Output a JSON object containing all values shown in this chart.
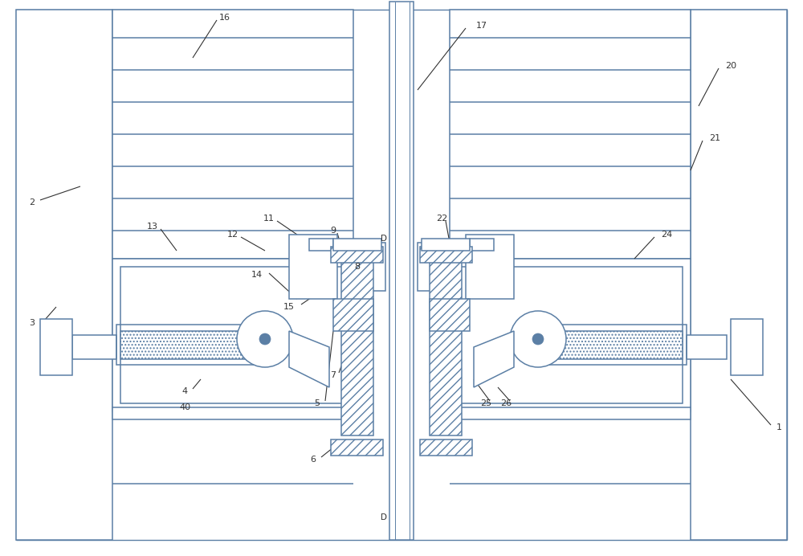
{
  "bg_color": "#ffffff",
  "line_color": "#5b7fa5",
  "text_color": "#333333",
  "fig_width": 10.0,
  "fig_height": 6.92,
  "dpi": 100,
  "lw": 1.1
}
